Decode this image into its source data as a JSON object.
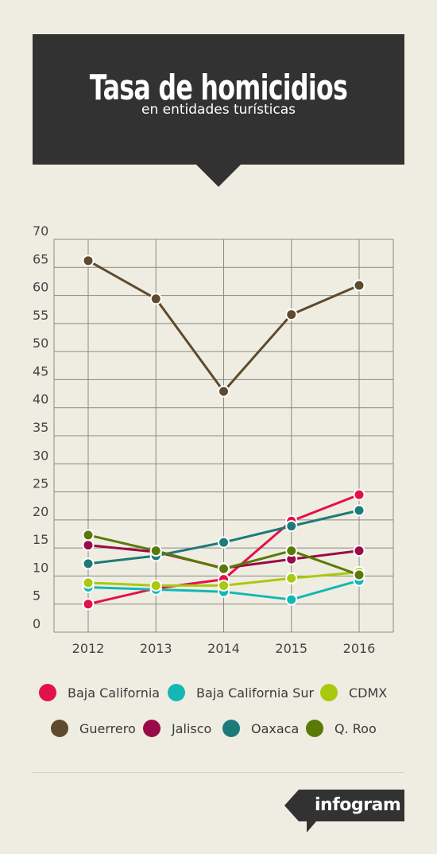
{
  "header": {
    "title": "Tasa de homicidios",
    "subtitle": "en entidades turísticas"
  },
  "brand": {
    "label": "infogram"
  },
  "chart_data": {
    "type": "line",
    "x": [
      "2012",
      "2013",
      "2014",
      "2015",
      "2016"
    ],
    "ylim": [
      0,
      70
    ],
    "yticks": [
      0,
      5,
      10,
      15,
      20,
      25,
      30,
      35,
      40,
      45,
      50,
      55,
      60,
      65,
      70
    ],
    "grid": true,
    "legend_position": "bottom",
    "series": [
      {
        "name": "Baja California",
        "color": "#e4104a",
        "values": [
          5.0,
          7.8,
          9.4,
          19.8,
          24.5
        ]
      },
      {
        "name": "Baja California Sur",
        "color": "#14b7b5",
        "values": [
          8.0,
          7.6,
          7.2,
          5.8,
          9.2
        ]
      },
      {
        "name": "CDMX",
        "color": "#a8c90d",
        "values": [
          8.8,
          8.3,
          8.3,
          9.6,
          10.7
        ]
      },
      {
        "name": "Guerrero",
        "color": "#5f4a2d",
        "values": [
          66.2,
          59.4,
          42.9,
          56.6,
          61.8
        ]
      },
      {
        "name": "Jalisco",
        "color": "#9a0a46",
        "values": [
          15.5,
          14.3,
          11.4,
          13.0,
          14.5
        ]
      },
      {
        "name": "Oaxaca",
        "color": "#1d7a7a",
        "values": [
          12.2,
          13.6,
          16.0,
          18.9,
          21.7
        ]
      },
      {
        "name": "Q. Roo",
        "color": "#5a7a08",
        "values": [
          17.3,
          14.5,
          11.3,
          14.5,
          10.2
        ]
      }
    ]
  }
}
